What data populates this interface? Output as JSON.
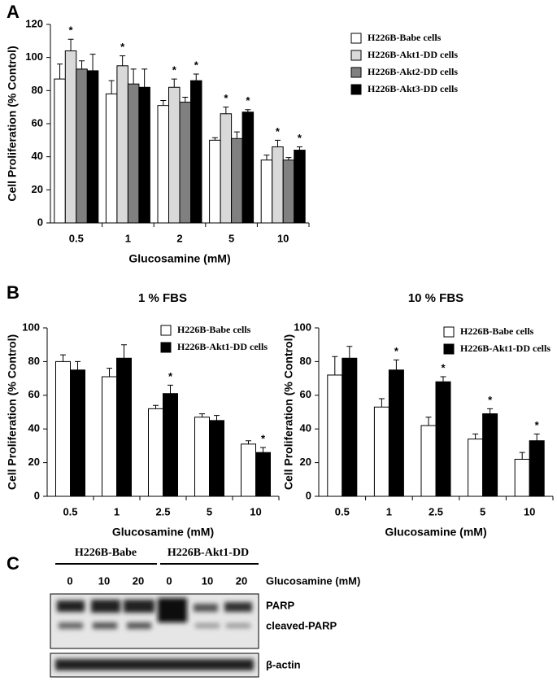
{
  "panels": [
    "A",
    "B",
    "C"
  ],
  "chart_data": [
    {
      "type": "bar",
      "x_label": "Glucosamine (mM)",
      "y_label": "Cell Proliferation (% Control)",
      "categories": [
        "0.5",
        "1",
        "2",
        "5",
        "10"
      ],
      "ylim": [
        0,
        120
      ],
      "yticks": [
        0,
        20,
        40,
        60,
        80,
        100,
        120
      ],
      "legend": "upper right",
      "series": [
        {
          "name": "H226B-Babe cells",
          "color": "#ffffff",
          "values": [
            87,
            78,
            71,
            50,
            38
          ],
          "errors": [
            9,
            8,
            3,
            1.5,
            3
          ],
          "significance": [
            null,
            null,
            null,
            null,
            null
          ]
        },
        {
          "name": "H226B-Akt1-DD cells",
          "color": "#d9d9d9",
          "values": [
            104,
            95,
            82,
            66,
            46
          ],
          "errors": [
            7,
            6,
            5,
            4,
            4
          ],
          "significance": [
            "*",
            "*",
            "*",
            "*",
            "*"
          ]
        },
        {
          "name": "H226B-Akt2-DD cells",
          "color": "#808080",
          "values": [
            93,
            84,
            73,
            51,
            38
          ],
          "errors": [
            5,
            9,
            3,
            4,
            1.5
          ],
          "significance": [
            null,
            null,
            null,
            null,
            null
          ]
        },
        {
          "name": "H226B-Akt3-DD cells",
          "color": "#000000",
          "values": [
            92,
            82,
            86,
            67,
            44
          ],
          "errors": [
            10,
            11,
            4,
            1.5,
            2
          ],
          "significance": [
            null,
            null,
            "*",
            "*",
            "*"
          ]
        }
      ]
    },
    {
      "type": "bar",
      "title": "1 % FBS",
      "x_label": "Glucosamine (mM)",
      "y_label": "Cell Proliferation (% Control)",
      "categories": [
        "0.5",
        "1",
        "2.5",
        "5",
        "10"
      ],
      "ylim": [
        0,
        100
      ],
      "yticks": [
        0,
        20,
        40,
        60,
        80,
        100
      ],
      "legend": "upper right",
      "series": [
        {
          "name": "H226B-Babe cells",
          "color": "#ffffff",
          "values": [
            80,
            71,
            52,
            47,
            31
          ],
          "errors": [
            4,
            5,
            2,
            2,
            2
          ],
          "significance": [
            null,
            null,
            null,
            null,
            null
          ]
        },
        {
          "name": "H226B-Akt1-DD cells",
          "color": "#000000",
          "values": [
            75,
            82,
            61,
            45,
            26
          ],
          "errors": [
            5,
            8,
            5,
            3,
            3
          ],
          "significance": [
            null,
            null,
            "*",
            null,
            "*"
          ]
        }
      ]
    },
    {
      "type": "bar",
      "title": "10 % FBS",
      "x_label": "Glucosamine (mM)",
      "y_label": "Cell Proliferation (% Control)",
      "categories": [
        "0.5",
        "1",
        "2.5",
        "5",
        "10"
      ],
      "ylim": [
        0,
        100
      ],
      "yticks": [
        0,
        20,
        40,
        60,
        80,
        100
      ],
      "legend": "upper right",
      "series": [
        {
          "name": "H226B-Babe cells",
          "color": "#ffffff",
          "values": [
            72,
            53,
            42,
            34,
            22
          ],
          "errors": [
            11,
            5,
            5,
            3,
            4
          ],
          "significance": [
            null,
            null,
            null,
            null,
            null
          ]
        },
        {
          "name": "H226B-Akt1-DD cells",
          "color": "#000000",
          "values": [
            82,
            75,
            68,
            49,
            33
          ],
          "errors": [
            7,
            6,
            3,
            3,
            4
          ],
          "significance": [
            null,
            "*",
            "*",
            "*",
            "*"
          ]
        }
      ]
    }
  ],
  "blot": {
    "groups": [
      "H226B-Babe",
      "H226B-Akt1-DD"
    ],
    "lanes": [
      "0",
      "10",
      "20",
      "0",
      "10",
      "20"
    ],
    "treatment": "Glucosamine (mM)",
    "bands": [
      "PARP",
      "cleaved-PARP"
    ],
    "loading": "β-actin"
  }
}
